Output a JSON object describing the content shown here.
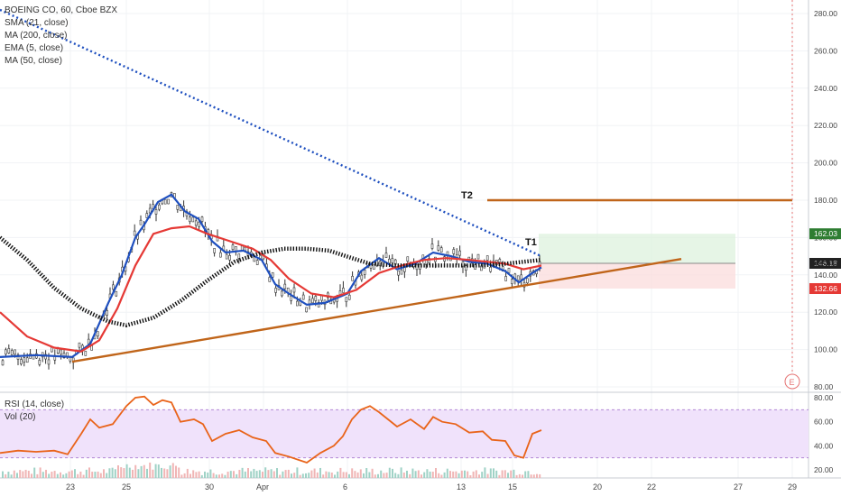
{
  "header": {
    "symbol_line": "BOEING CO, 60, Cboe BZX",
    "indicators": [
      "SMA (21, close)",
      "MA (200, close)",
      "EMA (5, close)",
      "MA (50, close)"
    ]
  },
  "lower_panel": {
    "legends": [
      "RSI (14, close)",
      "Vol (20)"
    ]
  },
  "chart_data": [
    {
      "type": "line",
      "panel": "price",
      "title": "BOEING CO, 60, Cboe BZX",
      "x_categories": [
        "23",
        "25",
        "30",
        "Apr",
        "6",
        "13",
        "15",
        "20",
        "22",
        "27",
        "29"
      ],
      "ylim": [
        80,
        290
      ],
      "y_ticks": [
        80.0,
        100.0,
        120.0,
        140.0,
        160.0,
        180.0,
        200.0,
        220.0,
        240.0,
        260.0,
        280.0
      ],
      "price_labels": [
        {
          "value": 162.03,
          "color": "#2e7d32",
          "text": "162.03"
        },
        {
          "value": 146.18,
          "color": "#222222",
          "text": "146.18"
        },
        {
          "value": 145.9,
          "color": "#ffffff",
          "text": "145.90"
        },
        {
          "value": 132.66,
          "color": "#e53935",
          "text": "132.66"
        }
      ],
      "annotations": [
        "T1",
        "T2",
        "E"
      ],
      "series": [
        {
          "name": "EMA (5, close)",
          "color": "#1e4fbf",
          "values": [
            [
              0,
              96
            ],
            [
              40,
              97
            ],
            [
              80,
              96
            ],
            [
              100,
              103
            ],
            [
              120,
              125
            ],
            [
              135,
              140
            ],
            [
              150,
              160
            ],
            [
              160,
              167
            ],
            [
              175,
              179
            ],
            [
              190,
              183
            ],
            [
              205,
              174
            ],
            [
              220,
              170
            ],
            [
              235,
              158
            ],
            [
              250,
              152
            ],
            [
              270,
              153
            ],
            [
              290,
              148
            ],
            [
              305,
              135
            ],
            [
              320,
              130
            ],
            [
              340,
              124
            ],
            [
              360,
              125
            ],
            [
              385,
              130
            ],
            [
              400,
              142
            ],
            [
              420,
              149
            ],
            [
              440,
              143
            ],
            [
              460,
              146
            ],
            [
              480,
              152
            ],
            [
              500,
              150
            ],
            [
              520,
              147
            ],
            [
              540,
              146
            ],
            [
              560,
              142
            ],
            [
              575,
              136
            ],
            [
              590,
              141
            ],
            [
              600,
              144
            ]
          ]
        },
        {
          "name": "SMA (21, close)",
          "color": "#e53935",
          "values": [
            [
              0,
              120
            ],
            [
              30,
              107
            ],
            [
              60,
              101
            ],
            [
              90,
              99
            ],
            [
              110,
              105
            ],
            [
              130,
              122
            ],
            [
              150,
              145
            ],
            [
              170,
              162
            ],
            [
              190,
              165
            ],
            [
              210,
              166
            ],
            [
              230,
              162
            ],
            [
              255,
              158
            ],
            [
              280,
              154
            ],
            [
              300,
              148
            ],
            [
              320,
              138
            ],
            [
              345,
              130
            ],
            [
              370,
              128
            ],
            [
              395,
              132
            ],
            [
              420,
              141
            ],
            [
              445,
              145
            ],
            [
              470,
              148
            ],
            [
              495,
              149
            ],
            [
              520,
              148
            ],
            [
              540,
              147
            ],
            [
              560,
              146
            ],
            [
              580,
              143
            ],
            [
              600,
              145
            ]
          ]
        },
        {
          "name": "MA (50, close)",
          "color": "#111111",
          "values": [
            [
              0,
              160
            ],
            [
              30,
              148
            ],
            [
              60,
              133
            ],
            [
              90,
              122
            ],
            [
              120,
              115
            ],
            [
              140,
              113
            ],
            [
              170,
              117
            ],
            [
              200,
              126
            ],
            [
              230,
              137
            ],
            [
              260,
              147
            ],
            [
              290,
              152
            ],
            [
              315,
              154
            ],
            [
              340,
              154
            ],
            [
              365,
              153
            ],
            [
              390,
              149
            ],
            [
              410,
              146
            ],
            [
              440,
              145
            ],
            [
              470,
              145
            ],
            [
              500,
              145
            ],
            [
              530,
              145
            ],
            [
              560,
              146
            ],
            [
              580,
              147
            ],
            [
              600,
              148
            ]
          ]
        },
        {
          "name": "MA (200, close)",
          "color": "#1e4fbf",
          "dashed": true,
          "values": [
            [
              0,
              282
            ],
            [
              600,
              150
            ]
          ]
        },
        {
          "name": "Support",
          "color": "#c0651a",
          "values": [
            [
              80,
              93.5
            ],
            [
              755,
              148.5
            ]
          ]
        },
        {
          "name": "T2 level",
          "color": "#c0651a",
          "values": [
            [
              540,
              180
            ],
            [
              878,
              180
            ]
          ]
        }
      ],
      "zones": [
        {
          "name": "Target zone",
          "x": [
            597,
            815
          ],
          "y": [
            146.2,
            162.03
          ],
          "color": "#ddf2dd"
        },
        {
          "name": "Stop zone",
          "x": [
            597,
            815
          ],
          "y": [
            132.66,
            146.2
          ],
          "color": "#fbdcdc"
        }
      ]
    },
    {
      "type": "line",
      "panel": "indicator",
      "title": "RSI (14, close)",
      "ylim": [
        20,
        85
      ],
      "y_ticks": [
        20.0,
        40.0,
        60.0,
        80.0
      ],
      "band": [
        30,
        70
      ],
      "series": [
        {
          "name": "RSI (14, close)",
          "color": "#e9641a",
          "values": [
            [
              0,
              34
            ],
            [
              20,
              36
            ],
            [
              40,
              35
            ],
            [
              60,
              36
            ],
            [
              75,
              33
            ],
            [
              90,
              50
            ],
            [
              100,
              62
            ],
            [
              110,
              55
            ],
            [
              125,
              58
            ],
            [
              140,
              73
            ],
            [
              150,
              80
            ],
            [
              160,
              81
            ],
            [
              170,
              74
            ],
            [
              180,
              78
            ],
            [
              190,
              76
            ],
            [
              200,
              60
            ],
            [
              215,
              62
            ],
            [
              225,
              58
            ],
            [
              235,
              44
            ],
            [
              250,
              50
            ],
            [
              265,
              53
            ],
            [
              280,
              47
            ],
            [
              295,
              44
            ],
            [
              305,
              34
            ],
            [
              320,
              31
            ],
            [
              340,
              26
            ],
            [
              355,
              34
            ],
            [
              370,
              40
            ],
            [
              380,
              48
            ],
            [
              390,
              62
            ],
            [
              400,
              70
            ],
            [
              410,
              73
            ],
            [
              420,
              68
            ],
            [
              430,
              62
            ],
            [
              440,
              56
            ],
            [
              455,
              62
            ],
            [
              470,
              54
            ],
            [
              480,
              64
            ],
            [
              490,
              60
            ],
            [
              505,
              58
            ],
            [
              520,
              51
            ],
            [
              535,
              52
            ],
            [
              545,
              45
            ],
            [
              560,
              44
            ],
            [
              570,
              32
            ],
            [
              580,
              30
            ],
            [
              590,
              50
            ],
            [
              600,
              53
            ]
          ]
        }
      ]
    }
  ]
}
